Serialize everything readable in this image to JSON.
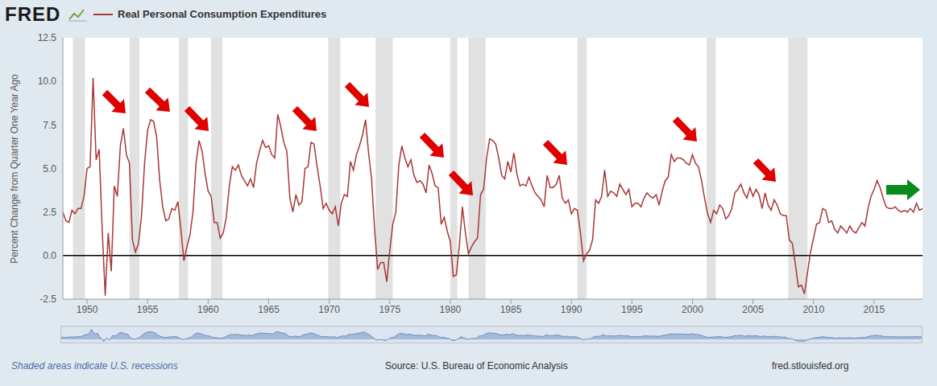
{
  "chart_data": {
    "type": "line",
    "logo": "FRED",
    "y_label": "Percent Change from Quarter One Year Ago",
    "note": "Shaded areas indicate U.S. recessions",
    "source": "Source: U.S. Bureau of Economic Analysis",
    "url": "fred.stlouisfed.org",
    "legend": "top-left",
    "grid": false,
    "x": [
      1948,
      1948.25,
      1948.5,
      1948.75,
      1949,
      1949.25,
      1949.5,
      1949.75,
      1950,
      1950.25,
      1950.5,
      1950.75,
      1951,
      1951.25,
      1951.5,
      1951.75,
      1952,
      1952.25,
      1952.5,
      1952.75,
      1953,
      1953.25,
      1953.5,
      1953.75,
      1954,
      1954.25,
      1954.5,
      1954.75,
      1955,
      1955.25,
      1955.5,
      1955.75,
      1956,
      1956.25,
      1956.5,
      1956.75,
      1957,
      1957.25,
      1957.5,
      1957.75,
      1958,
      1958.25,
      1958.5,
      1958.75,
      1959,
      1959.25,
      1959.5,
      1959.75,
      1960,
      1960.25,
      1960.5,
      1960.75,
      1961,
      1961.25,
      1961.5,
      1961.75,
      1962,
      1962.25,
      1962.5,
      1962.75,
      1963,
      1963.25,
      1963.5,
      1963.75,
      1964,
      1964.25,
      1964.5,
      1964.75,
      1965,
      1965.25,
      1965.5,
      1965.75,
      1966,
      1966.25,
      1966.5,
      1966.75,
      1967,
      1967.25,
      1967.5,
      1967.75,
      1968,
      1968.25,
      1968.5,
      1968.75,
      1969,
      1969.25,
      1969.5,
      1969.75,
      1970,
      1970.25,
      1970.5,
      1970.75,
      1971,
      1971.25,
      1971.5,
      1971.75,
      1972,
      1972.25,
      1972.5,
      1972.75,
      1973,
      1973.25,
      1973.5,
      1973.75,
      1974,
      1974.25,
      1974.5,
      1974.75,
      1975,
      1975.25,
      1975.5,
      1975.75,
      1976,
      1976.25,
      1976.5,
      1976.75,
      1977,
      1977.25,
      1977.5,
      1977.75,
      1978,
      1978.25,
      1978.5,
      1978.75,
      1979,
      1979.25,
      1979.5,
      1979.75,
      1980,
      1980.25,
      1980.5,
      1980.75,
      1981,
      1981.25,
      1981.5,
      1981.75,
      1982,
      1982.25,
      1982.5,
      1982.75,
      1983,
      1983.25,
      1983.5,
      1983.75,
      1984,
      1984.25,
      1984.5,
      1984.75,
      1985,
      1985.25,
      1985.5,
      1985.75,
      1986,
      1986.25,
      1986.5,
      1986.75,
      1987,
      1987.25,
      1987.5,
      1987.75,
      1988,
      1988.25,
      1988.5,
      1988.75,
      1989,
      1989.25,
      1989.5,
      1989.75,
      1990,
      1990.25,
      1990.5,
      1990.75,
      1991,
      1991.25,
      1991.5,
      1991.75,
      1992,
      1992.25,
      1992.5,
      1992.75,
      1993,
      1993.25,
      1993.5,
      1993.75,
      1994,
      1994.25,
      1994.5,
      1994.75,
      1995,
      1995.25,
      1995.5,
      1995.75,
      1996,
      1996.25,
      1996.5,
      1996.75,
      1997,
      1997.25,
      1997.5,
      1997.75,
      1998,
      1998.25,
      1998.5,
      1998.75,
      1999,
      1999.25,
      1999.5,
      1999.75,
      2000,
      2000.25,
      2000.5,
      2000.75,
      2001,
      2001.25,
      2001.5,
      2001.75,
      2002,
      2002.25,
      2002.5,
      2002.75,
      2003,
      2003.25,
      2003.5,
      2003.75,
      2004,
      2004.25,
      2004.5,
      2004.75,
      2005,
      2005.25,
      2005.5,
      2005.75,
      2006,
      2006.25,
      2006.5,
      2006.75,
      2007,
      2007.25,
      2007.5,
      2007.75,
      2008,
      2008.25,
      2008.5,
      2008.75,
      2009,
      2009.25,
      2009.5,
      2009.75,
      2010,
      2010.25,
      2010.5,
      2010.75,
      2011,
      2011.25,
      2011.5,
      2011.75,
      2012,
      2012.25,
      2012.5,
      2012.75,
      2013,
      2013.25,
      2013.5,
      2013.75,
      2014,
      2014.25,
      2014.5,
      2014.75,
      2015,
      2015.25,
      2015.5,
      2015.75,
      2016,
      2016.25,
      2016.5,
      2016.75,
      2017,
      2017.25,
      2017.5,
      2017.75,
      2018,
      2018.25,
      2018.5,
      2018.75,
      2019
    ],
    "series": [
      {
        "name": "Real Personal Consumption Expenditures",
        "color": "#a83838",
        "values": [
          2.5,
          2.0,
          1.9,
          2.6,
          2.4,
          2.7,
          2.7,
          3.4,
          5.0,
          5.1,
          10.2,
          5.5,
          6.1,
          1.5,
          -2.3,
          1.3,
          -0.9,
          4.0,
          3.4,
          6.3,
          7.3,
          5.8,
          5.3,
          0.9,
          0.2,
          0.7,
          2.3,
          5.3,
          7.2,
          7.8,
          7.7,
          6.8,
          4.3,
          2.8,
          2.0,
          2.1,
          2.7,
          2.6,
          3.1,
          1.5,
          -0.3,
          0.5,
          1.2,
          2.5,
          5.3,
          6.6,
          6.0,
          4.7,
          3.7,
          3.4,
          1.9,
          1.9,
          1.0,
          1.3,
          2.2,
          4.0,
          5.1,
          4.9,
          5.2,
          4.6,
          4.3,
          4.0,
          4.4,
          3.9,
          5.3,
          6.0,
          6.6,
          6.2,
          6.3,
          5.8,
          5.6,
          8.1,
          7.4,
          6.5,
          6.0,
          3.3,
          2.5,
          3.5,
          2.9,
          3.1,
          5.0,
          5.1,
          6.5,
          6.4,
          5.1,
          4.0,
          2.7,
          3.0,
          2.6,
          2.4,
          2.8,
          1.7,
          3.0,
          3.5,
          3.4,
          5.4,
          4.9,
          5.8,
          6.3,
          6.9,
          7.8,
          5.9,
          4.4,
          1.5,
          -0.8,
          -0.4,
          -0.4,
          -1.5,
          0.3,
          1.8,
          2.5,
          5.2,
          6.3,
          5.6,
          5.1,
          5.5,
          4.6,
          4.2,
          4.3,
          4.1,
          3.6,
          5.2,
          4.7,
          4.0,
          3.9,
          1.8,
          2.2,
          1.4,
          0.8,
          -1.2,
          -1.1,
          0.6,
          2.8,
          1.3,
          0.1,
          0.5,
          0.8,
          1.0,
          3.5,
          3.8,
          5.6,
          6.7,
          6.6,
          6.4,
          5.6,
          4.6,
          4.4,
          5.4,
          4.8,
          5.9,
          4.7,
          4.0,
          4.1,
          4.0,
          4.5,
          4.0,
          3.6,
          3.4,
          3.2,
          2.8,
          4.6,
          3.9,
          3.9,
          4.1,
          4.6,
          3.3,
          3.0,
          3.2,
          2.4,
          2.7,
          2.6,
          1.3,
          -0.3,
          0.1,
          0.3,
          0.9,
          3.2,
          3.0,
          3.4,
          4.9,
          3.4,
          3.7,
          3.6,
          3.4,
          4.1,
          3.8,
          3.5,
          3.8,
          2.8,
          3.0,
          3.0,
          2.8,
          3.3,
          3.6,
          3.4,
          3.3,
          3.5,
          2.9,
          3.7,
          4.3,
          4.5,
          5.8,
          5.4,
          5.6,
          5.6,
          5.5,
          5.3,
          5.2,
          5.8,
          5.3,
          5.1,
          4.3,
          3.3,
          2.4,
          1.9,
          2.6,
          2.4,
          2.9,
          2.7,
          2.1,
          2.3,
          2.7,
          3.6,
          3.8,
          4.1,
          3.6,
          3.3,
          3.9,
          3.4,
          3.8,
          3.5,
          2.7,
          3.6,
          2.9,
          2.6,
          3.2,
          2.9,
          2.4,
          2.3,
          2.3,
          0.9,
          0.7,
          -0.5,
          -1.8,
          -1.7,
          -2.2,
          -1.0,
          0.2,
          1.0,
          1.8,
          1.9,
          2.7,
          2.6,
          1.9,
          2.0,
          1.5,
          1.3,
          1.7,
          1.5,
          1.3,
          1.7,
          1.4,
          1.3,
          1.6,
          1.9,
          1.7,
          2.7,
          3.4,
          3.8,
          4.3,
          3.9,
          3.3,
          2.8,
          2.7,
          2.7,
          2.8,
          2.6,
          2.5,
          2.6,
          2.5,
          2.7,
          2.5,
          3.0,
          2.6,
          2.7
        ]
      }
    ],
    "recessions": [
      {
        "start": 1948.83,
        "end": 1949.83
      },
      {
        "start": 1953.5,
        "end": 1954.33
      },
      {
        "start": 1957.58,
        "end": 1958.33
      },
      {
        "start": 1960.25,
        "end": 1961.17
      },
      {
        "start": 1969.92,
        "end": 1970.92
      },
      {
        "start": 1973.83,
        "end": 1975.25
      },
      {
        "start": 1980.0,
        "end": 1980.58
      },
      {
        "start": 1981.5,
        "end": 1982.92
      },
      {
        "start": 1990.5,
        "end": 1991.25
      },
      {
        "start": 2001.17,
        "end": 2001.92
      },
      {
        "start": 2007.92,
        "end": 2009.5
      }
    ],
    "xlim": [
      1948,
      2019
    ],
    "xticks": [
      1950,
      1955,
      1960,
      1965,
      1970,
      1975,
      1980,
      1985,
      1990,
      1995,
      2000,
      2005,
      2010,
      2015
    ],
    "ylim": [
      -2.5,
      12.5
    ],
    "yticks": [
      -2.5,
      {
        "value": 0,
        "label": "0.0"
      },
      2.5,
      {
        "value": 5,
        "label": "5.0"
      },
      7.5,
      {
        "value": 10,
        "label": "10.0"
      },
      12.5
    ]
  }
}
